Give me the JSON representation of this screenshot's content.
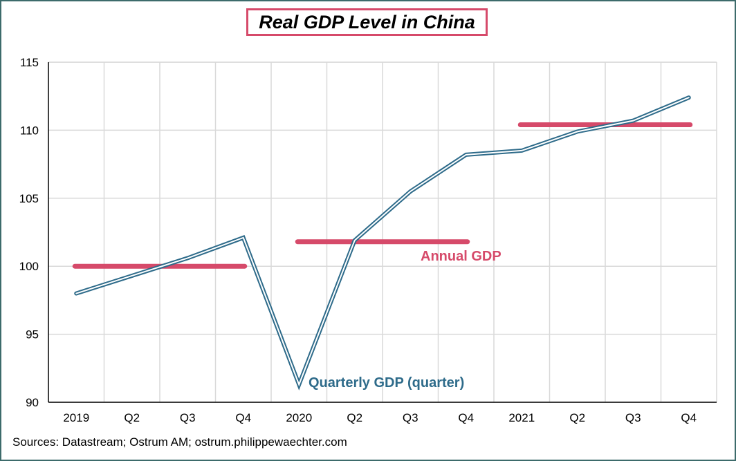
{
  "chart_data": {
    "type": "line",
    "title": "Real GDP Level in China",
    "categories": [
      "2019",
      "Q2",
      "Q3",
      "Q4",
      "2020",
      "Q2",
      "Q3",
      "Q4",
      "2021",
      "Q2",
      "Q3",
      "Q4"
    ],
    "ylim": [
      90,
      115
    ],
    "yticks": [
      "90",
      "95",
      "100",
      "105",
      "110",
      "115"
    ],
    "grid": true,
    "series": [
      {
        "name": "Quarterly GDP (quarter)",
        "type": "line",
        "color": "#2e6b8a",
        "values": [
          98.0,
          99.3,
          100.6,
          102.1,
          91.3,
          101.9,
          105.5,
          108.2,
          108.5,
          109.9,
          110.7,
          112.4
        ]
      },
      {
        "name": "Annual GDP",
        "type": "step",
        "color": "#d64a6a",
        "segments": [
          {
            "from": 0,
            "to": 3,
            "value": 100.0
          },
          {
            "from": 4,
            "to": 7,
            "value": 101.8
          },
          {
            "from": 8,
            "to": 11,
            "value": 110.4
          }
        ]
      }
    ],
    "annotations": {
      "quarterly": "Quarterly GDP (quarter)",
      "annual": "Annual GDP"
    }
  },
  "footer": {
    "source": "Sources: Datastream;  Ostrum AM;  ostrum.philippewaechter.com"
  }
}
